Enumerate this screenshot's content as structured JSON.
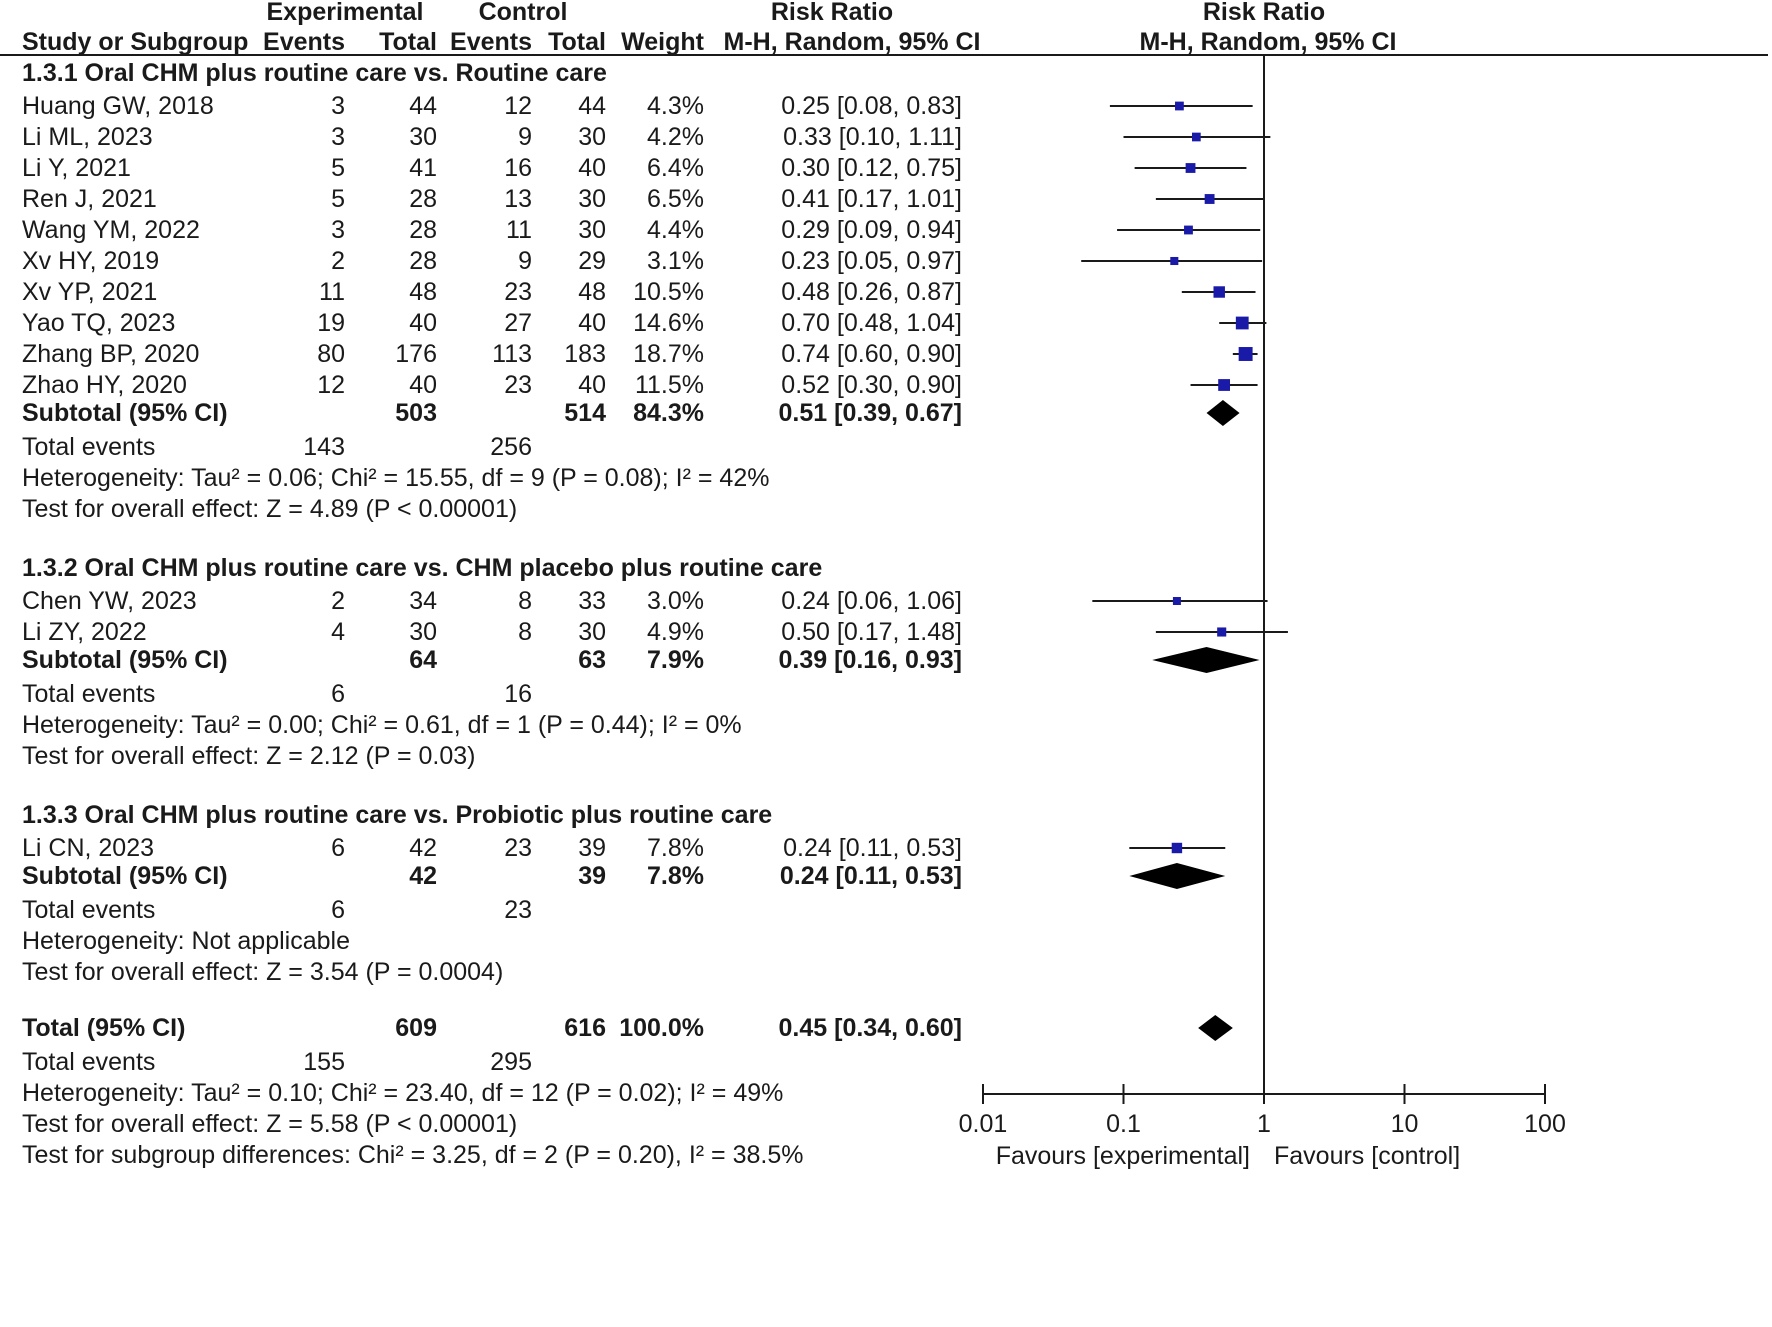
{
  "headers": {
    "experimental": "Experimental",
    "control": "Control",
    "risk_ratio": "Risk Ratio",
    "risk_ratio_plot": "Risk Ratio",
    "study": "Study or Subgroup",
    "events": "Events",
    "total": "Total",
    "events2": "Events",
    "total2": "Total",
    "weight": "Weight",
    "method": "M-H, Random, 95% CI",
    "method_plot": "M-H, Random, 95% CI"
  },
  "subgroups": [
    {
      "title": "1.3.1 Oral CHM plus routine care vs. Routine care",
      "studies": [
        {
          "name": "Huang GW, 2018",
          "e_events": "3",
          "e_total": "44",
          "c_events": "12",
          "c_total": "44",
          "weight": "4.3%",
          "ci_text": "0.25 [0.08, 0.83]",
          "rr": 0.25,
          "lo": 0.08,
          "hi": 0.83,
          "w": 4.3
        },
        {
          "name": "Li ML, 2023",
          "e_events": "3",
          "e_total": "30",
          "c_events": "9",
          "c_total": "30",
          "weight": "4.2%",
          "ci_text": "0.33 [0.10, 1.11]",
          "rr": 0.33,
          "lo": 0.1,
          "hi": 1.11,
          "w": 4.2
        },
        {
          "name": "Li Y, 2021",
          "e_events": "5",
          "e_total": "41",
          "c_events": "16",
          "c_total": "40",
          "weight": "6.4%",
          "ci_text": "0.30 [0.12, 0.75]",
          "rr": 0.3,
          "lo": 0.12,
          "hi": 0.75,
          "w": 6.4
        },
        {
          "name": "Ren J, 2021",
          "e_events": "5",
          "e_total": "28",
          "c_events": "13",
          "c_total": "30",
          "weight": "6.5%",
          "ci_text": "0.41 [0.17, 1.01]",
          "rr": 0.41,
          "lo": 0.17,
          "hi": 1.01,
          "w": 6.5
        },
        {
          "name": "Wang YM, 2022",
          "e_events": "3",
          "e_total": "28",
          "c_events": "11",
          "c_total": "30",
          "weight": "4.4%",
          "ci_text": "0.29 [0.09, 0.94]",
          "rr": 0.29,
          "lo": 0.09,
          "hi": 0.94,
          "w": 4.4
        },
        {
          "name": "Xv HY, 2019",
          "e_events": "2",
          "e_total": "28",
          "c_events": "9",
          "c_total": "29",
          "weight": "3.1%",
          "ci_text": "0.23 [0.05, 0.97]",
          "rr": 0.23,
          "lo": 0.05,
          "hi": 0.97,
          "w": 3.1
        },
        {
          "name": "Xv YP, 2021",
          "e_events": "11",
          "e_total": "48",
          "c_events": "23",
          "c_total": "48",
          "weight": "10.5%",
          "ci_text": "0.48 [0.26, 0.87]",
          "rr": 0.48,
          "lo": 0.26,
          "hi": 0.87,
          "w": 10.5
        },
        {
          "name": "Yao TQ, 2023",
          "e_events": "19",
          "e_total": "40",
          "c_events": "27",
          "c_total": "40",
          "weight": "14.6%",
          "ci_text": "0.70 [0.48, 1.04]",
          "rr": 0.7,
          "lo": 0.48,
          "hi": 1.04,
          "w": 14.6
        },
        {
          "name": "Zhang BP, 2020",
          "e_events": "80",
          "e_total": "176",
          "c_events": "113",
          "c_total": "183",
          "weight": "18.7%",
          "ci_text": "0.74 [0.60, 0.90]",
          "rr": 0.74,
          "lo": 0.6,
          "hi": 0.9,
          "w": 18.7
        },
        {
          "name": "Zhao HY, 2020",
          "e_events": "12",
          "e_total": "40",
          "c_events": "23",
          "c_total": "40",
          "weight": "11.5%",
          "ci_text": "0.52 [0.30, 0.90]",
          "rr": 0.52,
          "lo": 0.3,
          "hi": 0.9,
          "w": 11.5
        }
      ],
      "subtotal": {
        "label": "Subtotal (95% CI)",
        "e_total": "503",
        "c_total": "514",
        "weight": "84.3%",
        "ci_text": "0.51 [0.39, 0.67]",
        "rr": 0.51,
        "lo": 0.39,
        "hi": 0.67
      },
      "events": {
        "label": "Total events",
        "e": "143",
        "c": "256"
      },
      "heterogeneity": "Heterogeneity: Tau² = 0.06; Chi² = 15.55, df = 9 (P = 0.08); I² = 42%",
      "overall": "Test for overall effect: Z = 4.89 (P < 0.00001)"
    },
    {
      "title": "1.3.2 Oral CHM plus routine care vs. CHM placebo plus routine care",
      "studies": [
        {
          "name": "Chen YW, 2023",
          "e_events": "2",
          "e_total": "34",
          "c_events": "8",
          "c_total": "33",
          "weight": "3.0%",
          "ci_text": "0.24 [0.06, 1.06]",
          "rr": 0.24,
          "lo": 0.06,
          "hi": 1.06,
          "w": 3.0
        },
        {
          "name": "Li ZY, 2022",
          "e_events": "4",
          "e_total": "30",
          "c_events": "8",
          "c_total": "30",
          "weight": "4.9%",
          "ci_text": "0.50 [0.17, 1.48]",
          "rr": 0.5,
          "lo": 0.17,
          "hi": 1.48,
          "w": 4.9
        }
      ],
      "subtotal": {
        "label": "Subtotal (95% CI)",
        "e_total": "64",
        "c_total": "63",
        "weight": "7.9%",
        "ci_text": "0.39 [0.16, 0.93]",
        "rr": 0.39,
        "lo": 0.16,
        "hi": 0.93
      },
      "events": {
        "label": "Total events",
        "e": "6",
        "c": "16"
      },
      "heterogeneity": "Heterogeneity: Tau² = 0.00; Chi² = 0.61, df = 1 (P = 0.44); I² = 0%",
      "overall": "Test for overall effect: Z = 2.12 (P = 0.03)"
    },
    {
      "title": "1.3.3 Oral CHM plus routine care vs. Probiotic plus routine care",
      "studies": [
        {
          "name": "Li CN, 2023",
          "e_events": "6",
          "e_total": "42",
          "c_events": "23",
          "c_total": "39",
          "weight": "7.8%",
          "ci_text": "0.24 [0.11, 0.53]",
          "rr": 0.24,
          "lo": 0.11,
          "hi": 0.53,
          "w": 7.8
        }
      ],
      "subtotal": {
        "label": "Subtotal (95% CI)",
        "e_total": "42",
        "c_total": "39",
        "weight": "7.8%",
        "ci_text": "0.24 [0.11, 0.53]",
        "rr": 0.24,
        "lo": 0.11,
        "hi": 0.53
      },
      "events": {
        "label": "Total events",
        "e": "6",
        "c": "23"
      },
      "heterogeneity": "Heterogeneity: Not applicable",
      "overall": "Test for overall effect: Z = 3.54 (P = 0.0004)"
    }
  ],
  "total": {
    "label": "Total (95% CI)",
    "e_total": "609",
    "c_total": "616",
    "weight": "100.0%",
    "ci_text": "0.45 [0.34, 0.60]",
    "rr": 0.45,
    "lo": 0.34,
    "hi": 0.6,
    "events_label": "Total events",
    "events_e": "155",
    "events_c": "295",
    "heterogeneity": "Heterogeneity: Tau² = 0.10; Chi² = 23.40, df = 12 (P = 0.02); I² = 49%",
    "overall": "Test for overall effect: Z = 5.58 (P < 0.00001)",
    "subgroup_diff": "Test for subgroup differences: Chi² = 3.25, df = 2 (P = 0.20), I² = 38.5%"
  },
  "axis": {
    "scale": "log",
    "ticks": [
      0.01,
      0.1,
      1,
      10,
      100
    ],
    "tick_labels": [
      "0.01",
      "0.1",
      "1",
      "10",
      "100"
    ],
    "favours_left": "Favours [experimental]",
    "favours_right": "Favours [control]"
  },
  "colors": {
    "square": "#1a1aa8",
    "line": "#1a1a1a",
    "diamond": "#000000"
  },
  "chart_data": {
    "type": "scatter",
    "x_scale": "log",
    "xlim": [
      0.01,
      100
    ],
    "xlabel": "Risk Ratio M-H, Random, 95% CI"
  }
}
